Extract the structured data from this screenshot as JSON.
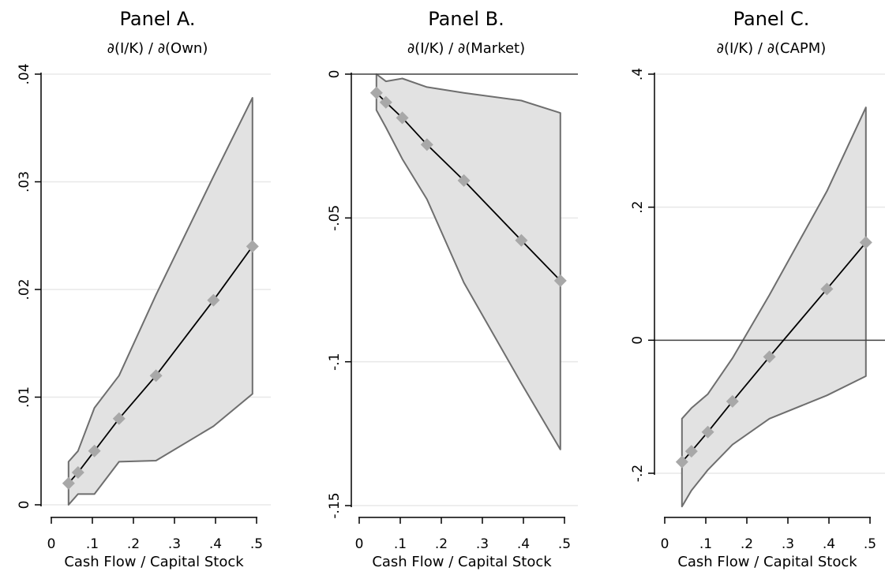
{
  "chart_data": [
    {
      "type": "area",
      "title": "Panel A.",
      "subtitle": "∂(I/K) / ∂(Own)",
      "xlabel": "Cash Flow / Capital Stock",
      "ylabel": "",
      "xlim": [
        0,
        0.5
      ],
      "ylim": [
        0,
        0.04
      ],
      "xticks": [
        0,
        0.1,
        0.2,
        0.3,
        0.4,
        0.5
      ],
      "xtick_labels": [
        "0",
        ".1",
        ".2",
        ".3",
        ".4",
        ".5"
      ],
      "yticks": [
        0,
        0.01,
        0.02,
        0.03,
        0.04
      ],
      "ytick_labels": [
        "0",
        ".01",
        ".02",
        ".03",
        ".04"
      ],
      "grid": true,
      "zero_line": false,
      "series": [
        {
          "x": [
            0.042,
            0.065,
            0.105,
            0.165,
            0.255,
            0.395,
            0.49
          ],
          "values": [
            0.002,
            0.003,
            0.005,
            0.008,
            0.012,
            0.019,
            0.024
          ]
        }
      ],
      "band": {
        "x": [
          0.042,
          0.065,
          0.105,
          0.165,
          0.255,
          0.395,
          0.49
        ],
        "upper": [
          0.004,
          0.005,
          0.009,
          0.012,
          0.0195,
          0.0305,
          0.0378
        ],
        "lower": [
          0.0,
          0.001,
          0.001,
          0.004,
          0.0041,
          0.0073,
          0.0103
        ]
      }
    },
    {
      "type": "area",
      "title": "Panel B.",
      "subtitle": "∂(I/K) / ∂(Market)",
      "xlabel": "Cash Flow / Capital Stock",
      "ylabel": "",
      "xlim": [
        0,
        0.5
      ],
      "ylim": [
        -0.15,
        0
      ],
      "xticks": [
        0,
        0.1,
        0.2,
        0.3,
        0.4,
        0.5
      ],
      "xtick_labels": [
        "0",
        ".1",
        ".2",
        ".3",
        ".4",
        ".5"
      ],
      "yticks": [
        0,
        -0.05,
        -0.1,
        -0.15
      ],
      "ytick_labels": [
        "0",
        "-.05",
        "-.1",
        "-.15"
      ],
      "grid": true,
      "zero_line": true,
      "series": [
        {
          "x": [
            0.042,
            0.065,
            0.105,
            0.165,
            0.255,
            0.395,
            0.49
          ],
          "values": [
            -0.0065,
            -0.0098,
            -0.0152,
            -0.0245,
            -0.037,
            -0.0578,
            -0.0718
          ]
        }
      ],
      "band": {
        "x": [
          0.042,
          0.065,
          0.105,
          0.165,
          0.255,
          0.395,
          0.49
        ],
        "upper": [
          0.0,
          -0.0025,
          -0.0015,
          -0.0045,
          -0.0065,
          -0.0092,
          -0.0135
        ],
        "lower": [
          -0.0125,
          -0.0185,
          -0.0295,
          -0.0435,
          -0.0725,
          -0.1075,
          -0.1305
        ]
      }
    },
    {
      "type": "area",
      "title": "Panel C.",
      "subtitle": "∂(I/K) / ∂(CAPM)",
      "xlabel": "Cash Flow / Capital Stock",
      "ylabel": "",
      "xlim": [
        0,
        0.5
      ],
      "ylim": [
        -0.2,
        0.4
      ],
      "xticks": [
        0,
        0.1,
        0.2,
        0.3,
        0.4,
        0.5
      ],
      "xtick_labels": [
        "0",
        ".1",
        ".2",
        ".3",
        ".4",
        ".5"
      ],
      "yticks": [
        -0.2,
        0,
        0.2,
        0.4
      ],
      "ytick_labels": [
        "-.2",
        "0",
        ".2",
        ".4"
      ],
      "grid": true,
      "zero_line": true,
      "series": [
        {
          "x": [
            0.042,
            0.065,
            0.105,
            0.165,
            0.255,
            0.395,
            0.49
          ],
          "values": [
            -0.183,
            -0.167,
            -0.138,
            -0.092,
            -0.025,
            0.077,
            0.147
          ]
        }
      ],
      "band": {
        "x": [
          0.042,
          0.065,
          0.105,
          0.165,
          0.255,
          0.395,
          0.49
        ],
        "upper": [
          -0.118,
          -0.102,
          -0.081,
          -0.027,
          0.068,
          0.224,
          0.35
        ],
        "lower": [
          -0.25,
          -0.226,
          -0.195,
          -0.157,
          -0.118,
          -0.083,
          -0.054
        ]
      }
    }
  ]
}
